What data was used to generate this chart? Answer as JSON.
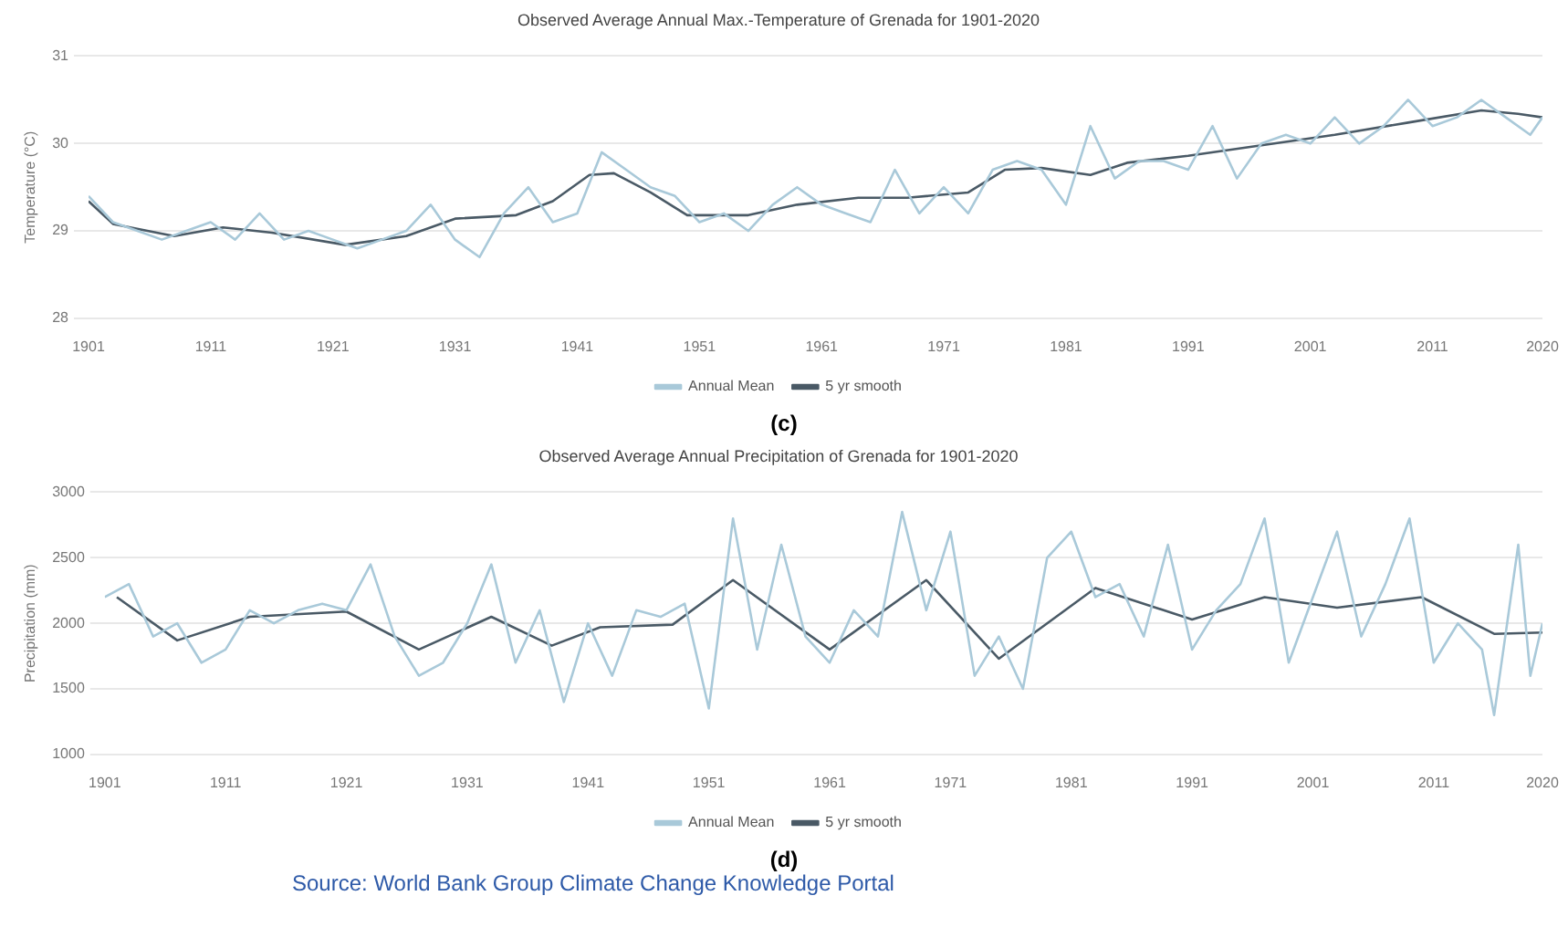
{
  "chart_data": [
    {
      "type": "line",
      "title": "Observed Average Annual Max.-Temperature of Grenada for 1901-2020",
      "ylabel": "Temperature (°C)",
      "xlim": [
        1901,
        2020
      ],
      "xticks": [
        1901,
        1911,
        1921,
        1931,
        1941,
        1951,
        1961,
        1971,
        1981,
        1991,
        2001,
        2011,
        2020
      ],
      "ylim": [
        28,
        31
      ],
      "yticks": [
        28,
        29,
        30,
        31
      ],
      "grid": "y",
      "legend": "bottom",
      "marker": "none",
      "annotations": [
        "(c)"
      ],
      "series": [
        {
          "name": "Annual Mean",
          "color": "#a9c9d9",
          "x": [
            1901,
            1903,
            1905,
            1907,
            1909,
            1911,
            1913,
            1915,
            1917,
            1919,
            1921,
            1923,
            1925,
            1927,
            1929,
            1931,
            1933,
            1935,
            1937,
            1939,
            1941,
            1943,
            1945,
            1947,
            1949,
            1951,
            1953,
            1955,
            1957,
            1959,
            1961,
            1963,
            1965,
            1967,
            1969,
            1971,
            1973,
            1975,
            1977,
            1979,
            1981,
            1983,
            1985,
            1987,
            1989,
            1991,
            1993,
            1995,
            1997,
            1999,
            2001,
            2003,
            2005,
            2007,
            2009,
            2011,
            2013,
            2015,
            2017,
            2019,
            2020
          ],
          "values": [
            29.4,
            29.1,
            29.0,
            28.9,
            29.0,
            29.1,
            28.9,
            29.2,
            28.9,
            29.0,
            28.9,
            28.8,
            28.9,
            29.0,
            29.3,
            28.9,
            28.7,
            29.2,
            29.5,
            29.1,
            29.2,
            29.9,
            29.7,
            29.5,
            29.4,
            29.1,
            29.2,
            29.0,
            29.3,
            29.5,
            29.3,
            29.2,
            29.1,
            29.7,
            29.2,
            29.5,
            29.2,
            29.7,
            29.8,
            29.7,
            29.3,
            30.2,
            29.6,
            29.8,
            29.8,
            29.7,
            30.2,
            29.6,
            30.0,
            30.1,
            30.0,
            30.3,
            30.0,
            30.2,
            30.5,
            30.2,
            30.3,
            30.5,
            30.3,
            30.1,
            30.3
          ]
        },
        {
          "name": "5 yr smooth",
          "color": "#4a5a66",
          "x": [
            1901,
            1903,
            1908,
            1912,
            1916,
            1922,
            1927,
            1931,
            1936,
            1939,
            1942,
            1944,
            1947,
            1950,
            1955,
            1959,
            1964,
            1968,
            1973,
            1976,
            1979,
            1983,
            1986,
            1991,
            1997,
            2003,
            2009,
            2015,
            2018,
            2020
          ],
          "values": [
            29.34,
            29.08,
            28.94,
            29.04,
            28.98,
            28.84,
            28.94,
            29.14,
            29.18,
            29.34,
            29.64,
            29.66,
            29.44,
            29.18,
            29.18,
            29.3,
            29.38,
            29.38,
            29.44,
            29.7,
            29.72,
            29.64,
            29.78,
            29.86,
            29.98,
            30.1,
            30.24,
            30.38,
            30.34,
            30.3
          ]
        }
      ]
    },
    {
      "type": "line",
      "title": "Observed Average Annual Precipitation of Grenada for 1901-2020",
      "ylabel": "Precipitation (mm)",
      "xlim": [
        1901,
        2020
      ],
      "xticks": [
        1901,
        1911,
        1921,
        1931,
        1941,
        1951,
        1961,
        1971,
        1981,
        1991,
        2001,
        2011,
        2020
      ],
      "ylim": [
        1000,
        3000
      ],
      "yticks": [
        1000,
        1500,
        2000,
        2500,
        3000
      ],
      "grid": "y",
      "legend": "bottom",
      "marker": "none",
      "annotations": [
        "(d)",
        "Source: World Bank Group Climate Change Knowledge Portal"
      ],
      "series": [
        {
          "name": "Annual Mean",
          "color": "#a9c9d9",
          "x": [
            1901,
            1903,
            1905,
            1907,
            1909,
            1911,
            1913,
            1915,
            1917,
            1919,
            1921,
            1923,
            1925,
            1927,
            1929,
            1931,
            1933,
            1935,
            1937,
            1939,
            1941,
            1943,
            1945,
            1947,
            1949,
            1951,
            1953,
            1955,
            1957,
            1959,
            1961,
            1963,
            1965,
            1967,
            1969,
            1971,
            1973,
            1975,
            1977,
            1979,
            1981,
            1983,
            1985,
            1987,
            1989,
            1991,
            1993,
            1995,
            1997,
            1999,
            2001,
            2003,
            2005,
            2007,
            2009,
            2011,
            2013,
            2015,
            2016,
            2018,
            2019,
            2020
          ],
          "values": [
            2200,
            2300,
            1900,
            2000,
            1700,
            1800,
            2100,
            2000,
            2100,
            2150,
            2100,
            2450,
            1900,
            1600,
            1700,
            2000,
            2450,
            1700,
            2100,
            1400,
            2000,
            1600,
            2100,
            2050,
            2150,
            1350,
            2800,
            1800,
            2600,
            1900,
            1700,
            2100,
            1900,
            2850,
            2100,
            2700,
            1600,
            1900,
            1500,
            2500,
            2700,
            2200,
            2300,
            1900,
            2600,
            1800,
            2100,
            2300,
            2800,
            1700,
            2200,
            2700,
            1900,
            2300,
            2800,
            1700,
            2000,
            1800,
            1300,
            2600,
            1600,
            2000
          ]
        },
        {
          "name": "5 yr smooth",
          "color": "#4a5a66",
          "x": [
            1902,
            1907,
            1913,
            1921,
            1927,
            1933,
            1938,
            1942,
            1948,
            1953,
            1961,
            1969,
            1975,
            1983,
            1991,
            1997,
            2003,
            2010,
            2016,
            2020
          ],
          "values": [
            2200,
            1870,
            2050,
            2090,
            1800,
            2050,
            1830,
            1970,
            1990,
            2330,
            1800,
            2330,
            1730,
            2270,
            2030,
            2200,
            2120,
            2200,
            1920,
            1930
          ]
        }
      ]
    }
  ]
}
